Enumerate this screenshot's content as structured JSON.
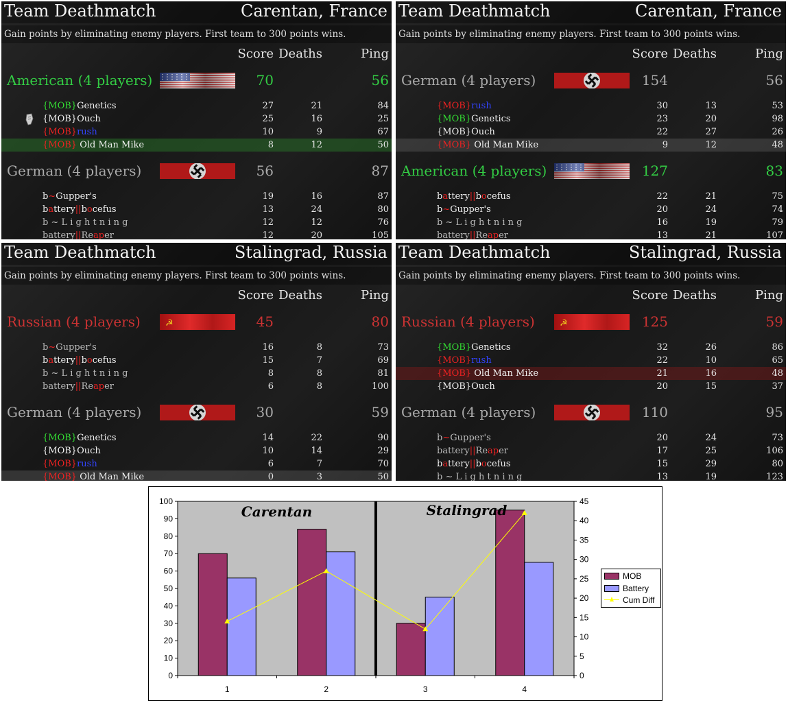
{
  "panels": [
    {
      "mode": "Team Deathmatch",
      "map": "Carentan, France",
      "description": "Gain points by eliminating enemy players. First team to 300 points wins.",
      "headers": {
        "score": "Score",
        "deaths": "Deaths",
        "ping": "Ping"
      },
      "teams": [
        {
          "name": "American (4 players)",
          "flag": "usa-flag-icon",
          "color": "#33cc44",
          "score": "70",
          "ping": "56",
          "players": [
            {
              "name": [
                {
                  "t": "{MOB}",
                  "c": "tag-green"
                },
                {
                  "t": "Genetics",
                  "c": ""
                }
              ],
              "score": "27",
              "deaths": "21",
              "ping": "84",
              "hl": "",
              "dead": false
            },
            {
              "name": [
                {
                  "t": "{MOB}Ouch",
                  "c": ""
                }
              ],
              "score": "25",
              "deaths": "16",
              "ping": "25",
              "hl": "",
              "dead": true
            },
            {
              "name": [
                {
                  "t": "{MOB}",
                  "c": "tag-red"
                },
                {
                  "t": "rush",
                  "c": "tag-blue"
                }
              ],
              "score": "10",
              "deaths": "9",
              "ping": "67",
              "hl": "",
              "dead": false
            },
            {
              "name": [
                {
                  "t": "{MOB}",
                  "c": "tag-red"
                },
                {
                  "t": " Old Man Mike",
                  "c": ""
                }
              ],
              "score": "8",
              "deaths": "12",
              "ping": "50",
              "hl": "hl-green",
              "dead": false
            }
          ]
        },
        {
          "name": "German (4 players)",
          "flag": "german-flag-icon",
          "color": "#aaaaaa",
          "score": "56",
          "ping": "87",
          "players": [
            {
              "name": [
                {
                  "t": "b",
                  "c": ""
                },
                {
                  "t": "~",
                  "c": "c-red"
                },
                {
                  "t": "Gupper's",
                  "c": ""
                }
              ],
              "score": "19",
              "deaths": "16",
              "ping": "87",
              "hl": "",
              "dead": false
            },
            {
              "name": [
                {
                  "t": "b",
                  "c": ""
                },
                {
                  "t": "a",
                  "c": "c-red"
                },
                {
                  "t": "ttery",
                  "c": ""
                },
                {
                  "t": "||",
                  "c": "c-red"
                },
                {
                  "t": "b",
                  "c": ""
                },
                {
                  "t": "o",
                  "c": "c-red"
                },
                {
                  "t": "cefus",
                  "c": ""
                }
              ],
              "score": "13",
              "deaths": "24",
              "ping": "80",
              "hl": "",
              "dead": false
            },
            {
              "name": [
                {
                  "t": "b ~ L i g h t n i n g",
                  "c": "c-grey"
                }
              ],
              "score": "12",
              "deaths": "12",
              "ping": "76",
              "hl": "",
              "dead": false
            },
            {
              "name": [
                {
                  "t": "battery",
                  "c": "c-grey"
                },
                {
                  "t": "||",
                  "c": "c-red"
                },
                {
                  "t": "Re",
                  "c": "c-grey"
                },
                {
                  "t": "ap",
                  "c": "c-red"
                },
                {
                  "t": "er",
                  "c": "c-grey"
                }
              ],
              "score": "12",
              "deaths": "20",
              "ping": "105",
              "hl": "",
              "dead": false
            }
          ]
        }
      ]
    },
    {
      "mode": "Team Deathmatch",
      "map": "Carentan, France",
      "description": "Gain points by eliminating enemy players. First team to 300 points wins.",
      "headers": {
        "score": "Score",
        "deaths": "Deaths",
        "ping": "Ping"
      },
      "teams": [
        {
          "name": "German (4 players)",
          "flag": "german-flag-icon",
          "color": "#aaaaaa",
          "score": "154",
          "ping": "56",
          "players": [
            {
              "name": [
                {
                  "t": "{MOB}",
                  "c": "tag-red"
                },
                {
                  "t": "rush",
                  "c": "tag-blue"
                }
              ],
              "score": "30",
              "deaths": "13",
              "ping": "53",
              "hl": "",
              "dead": false
            },
            {
              "name": [
                {
                  "t": "{MOB}",
                  "c": "tag-green"
                },
                {
                  "t": "Genetics",
                  "c": ""
                }
              ],
              "score": "23",
              "deaths": "20",
              "ping": "98",
              "hl": "",
              "dead": false
            },
            {
              "name": [
                {
                  "t": "{MOB}Ouch",
                  "c": ""
                }
              ],
              "score": "22",
              "deaths": "27",
              "ping": "26",
              "hl": "",
              "dead": false
            },
            {
              "name": [
                {
                  "t": "{MOB}",
                  "c": "tag-red"
                },
                {
                  "t": " Old Man Mike",
                  "c": ""
                }
              ],
              "score": "9",
              "deaths": "12",
              "ping": "48",
              "hl": "hl-grey",
              "dead": false
            }
          ]
        },
        {
          "name": "American (4 players)",
          "flag": "usa-flag-icon",
          "color": "#33cc44",
          "score": "127",
          "ping": "83",
          "players": [
            {
              "name": [
                {
                  "t": "b",
                  "c": ""
                },
                {
                  "t": "a",
                  "c": "c-red"
                },
                {
                  "t": "ttery",
                  "c": ""
                },
                {
                  "t": "||",
                  "c": "c-red"
                },
                {
                  "t": "b",
                  "c": ""
                },
                {
                  "t": "o",
                  "c": "c-red"
                },
                {
                  "t": "cefus",
                  "c": ""
                }
              ],
              "score": "22",
              "deaths": "21",
              "ping": "75",
              "hl": "",
              "dead": false
            },
            {
              "name": [
                {
                  "t": "b",
                  "c": ""
                },
                {
                  "t": "~",
                  "c": "c-red"
                },
                {
                  "t": "Gupper's",
                  "c": ""
                }
              ],
              "score": "20",
              "deaths": "24",
              "ping": "74",
              "hl": "",
              "dead": false
            },
            {
              "name": [
                {
                  "t": "b ~ L i g h t n i n g",
                  "c": "c-grey"
                }
              ],
              "score": "16",
              "deaths": "19",
              "ping": "79",
              "hl": "",
              "dead": false
            },
            {
              "name": [
                {
                  "t": "battery",
                  "c": "c-grey"
                },
                {
                  "t": "||",
                  "c": "c-red"
                },
                {
                  "t": "Re",
                  "c": "c-grey"
                },
                {
                  "t": "ap",
                  "c": "c-red"
                },
                {
                  "t": "er",
                  "c": "c-grey"
                }
              ],
              "score": "13",
              "deaths": "21",
              "ping": "107",
              "hl": "",
              "dead": false
            }
          ]
        }
      ]
    },
    {
      "mode": "Team Deathmatch",
      "map": "Stalingrad, Russia",
      "description": "Gain points by eliminating enemy players. First team to 300 points wins.",
      "headers": {
        "score": "Score",
        "deaths": "Deaths",
        "ping": "Ping"
      },
      "teams": [
        {
          "name": "Russian (4 players)",
          "flag": "soviet-flag-icon",
          "color": "#cc3333",
          "score": "45",
          "ping": "80",
          "players": [
            {
              "name": [
                {
                  "t": "b",
                  "c": "c-grey"
                },
                {
                  "t": "~",
                  "c": "c-red"
                },
                {
                  "t": "Gupper's",
                  "c": "c-grey"
                }
              ],
              "score": "16",
              "deaths": "8",
              "ping": "73",
              "hl": "",
              "dead": false
            },
            {
              "name": [
                {
                  "t": "b",
                  "c": ""
                },
                {
                  "t": "a",
                  "c": "c-red"
                },
                {
                  "t": "ttery",
                  "c": ""
                },
                {
                  "t": "||",
                  "c": "c-red"
                },
                {
                  "t": "b",
                  "c": ""
                },
                {
                  "t": "o",
                  "c": "c-red"
                },
                {
                  "t": "cefus",
                  "c": ""
                }
              ],
              "score": "15",
              "deaths": "7",
              "ping": "69",
              "hl": "",
              "dead": false
            },
            {
              "name": [
                {
                  "t": "b ~ L i g h t n i n g",
                  "c": "c-grey"
                }
              ],
              "score": "8",
              "deaths": "8",
              "ping": "81",
              "hl": "",
              "dead": false
            },
            {
              "name": [
                {
                  "t": "battery",
                  "c": "c-grey"
                },
                {
                  "t": "||",
                  "c": "c-red"
                },
                {
                  "t": "Re",
                  "c": "c-grey"
                },
                {
                  "t": "ap",
                  "c": "c-red"
                },
                {
                  "t": "er",
                  "c": "c-grey"
                }
              ],
              "score": "6",
              "deaths": "8",
              "ping": "100",
              "hl": "",
              "dead": false
            }
          ]
        },
        {
          "name": "German (4 players)",
          "flag": "german-flag-icon",
          "color": "#aaaaaa",
          "score": "30",
          "ping": "59",
          "players": [
            {
              "name": [
                {
                  "t": "{MOB}",
                  "c": "tag-green"
                },
                {
                  "t": "Genetics",
                  "c": ""
                }
              ],
              "score": "14",
              "deaths": "22",
              "ping": "90",
              "hl": "",
              "dead": false
            },
            {
              "name": [
                {
                  "t": "{MOB}Ouch",
                  "c": ""
                }
              ],
              "score": "10",
              "deaths": "14",
              "ping": "29",
              "hl": "",
              "dead": false
            },
            {
              "name": [
                {
                  "t": "{MOB}",
                  "c": "tag-red"
                },
                {
                  "t": "rush",
                  "c": "tag-blue"
                }
              ],
              "score": "6",
              "deaths": "7",
              "ping": "70",
              "hl": "",
              "dead": false
            },
            {
              "name": [
                {
                  "t": "{MOB}",
                  "c": "tag-red"
                },
                {
                  "t": " Old Man Mike",
                  "c": ""
                }
              ],
              "score": "0",
              "deaths": "3",
              "ping": "50",
              "hl": "hl-grey",
              "dead": false
            }
          ]
        }
      ]
    },
    {
      "mode": "Team Deathmatch",
      "map": "Stalingrad, Russia",
      "description": "Gain points by eliminating enemy players. First team to 300 points wins.",
      "headers": {
        "score": "Score",
        "deaths": "Deaths",
        "ping": "Ping"
      },
      "teams": [
        {
          "name": "Russian (4 players)",
          "flag": "soviet-flag-icon",
          "color": "#cc3333",
          "score": "125",
          "ping": "59",
          "players": [
            {
              "name": [
                {
                  "t": "{MOB}",
                  "c": "tag-green"
                },
                {
                  "t": "Genetics",
                  "c": ""
                }
              ],
              "score": "32",
              "deaths": "26",
              "ping": "86",
              "hl": "",
              "dead": false
            },
            {
              "name": [
                {
                  "t": "{MOB}",
                  "c": "tag-red"
                },
                {
                  "t": "rush",
                  "c": "tag-blue"
                }
              ],
              "score": "22",
              "deaths": "10",
              "ping": "65",
              "hl": "",
              "dead": false
            },
            {
              "name": [
                {
                  "t": "{MOB}",
                  "c": "tag-red"
                },
                {
                  "t": " Old Man Mike",
                  "c": ""
                }
              ],
              "score": "21",
              "deaths": "16",
              "ping": "48",
              "hl": "hl-red",
              "dead": false
            },
            {
              "name": [
                {
                  "t": "{MOB}Ouch",
                  "c": ""
                }
              ],
              "score": "20",
              "deaths": "15",
              "ping": "37",
              "hl": "",
              "dead": false
            }
          ]
        },
        {
          "name": "German (4 players)",
          "flag": "german-flag-icon",
          "color": "#aaaaaa",
          "score": "110",
          "ping": "95",
          "players": [
            {
              "name": [
                {
                  "t": "b",
                  "c": "c-grey"
                },
                {
                  "t": "~",
                  "c": "c-red"
                },
                {
                  "t": "Gupper's",
                  "c": "c-grey"
                }
              ],
              "score": "20",
              "deaths": "24",
              "ping": "73",
              "hl": "",
              "dead": false
            },
            {
              "name": [
                {
                  "t": "battery",
                  "c": "c-grey"
                },
                {
                  "t": "||",
                  "c": "c-red"
                },
                {
                  "t": "Re",
                  "c": "c-grey"
                },
                {
                  "t": "ap",
                  "c": "c-red"
                },
                {
                  "t": "er",
                  "c": "c-grey"
                }
              ],
              "score": "17",
              "deaths": "25",
              "ping": "106",
              "hl": "",
              "dead": false
            },
            {
              "name": [
                {
                  "t": "b",
                  "c": ""
                },
                {
                  "t": "a",
                  "c": "c-red"
                },
                {
                  "t": "ttery",
                  "c": ""
                },
                {
                  "t": "||",
                  "c": "c-red"
                },
                {
                  "t": "b",
                  "c": ""
                },
                {
                  "t": "o",
                  "c": "c-red"
                },
                {
                  "t": "cefus",
                  "c": ""
                }
              ],
              "score": "15",
              "deaths": "29",
              "ping": "80",
              "hl": "",
              "dead": false
            },
            {
              "name": [
                {
                  "t": "b ~ L i g h t n i n g",
                  "c": "c-grey"
                }
              ],
              "score": "13",
              "deaths": "19",
              "ping": "123",
              "hl": "",
              "dead": false
            }
          ]
        }
      ]
    }
  ],
  "chart_data": {
    "type": "bar",
    "categories": [
      "1",
      "2",
      "3",
      "4"
    ],
    "series": [
      {
        "name": "MOB",
        "values": [
          70,
          84,
          30,
          95
        ],
        "color": "#993366",
        "axis": "left"
      },
      {
        "name": "Battery",
        "values": [
          56,
          71,
          45,
          65
        ],
        "color": "#9999ff",
        "axis": "left"
      },
      {
        "name": "Cum Diff",
        "values": [
          14,
          27,
          12,
          42
        ],
        "color": "#ffff00",
        "axis": "right",
        "kind": "line"
      }
    ],
    "ylim": [
      0,
      100
    ],
    "yticks": [
      0,
      10,
      20,
      30,
      40,
      50,
      60,
      70,
      80,
      90,
      100
    ],
    "y2lim": [
      0,
      45
    ],
    "y2ticks": [
      0,
      5,
      10,
      15,
      20,
      25,
      30,
      35,
      40,
      45
    ],
    "annotations": [
      "Carentan",
      "Stalingrad"
    ],
    "divider_between": [
      2,
      3
    ],
    "plot_background": "#c0c0c0",
    "grid": false,
    "legend_position": "right"
  }
}
